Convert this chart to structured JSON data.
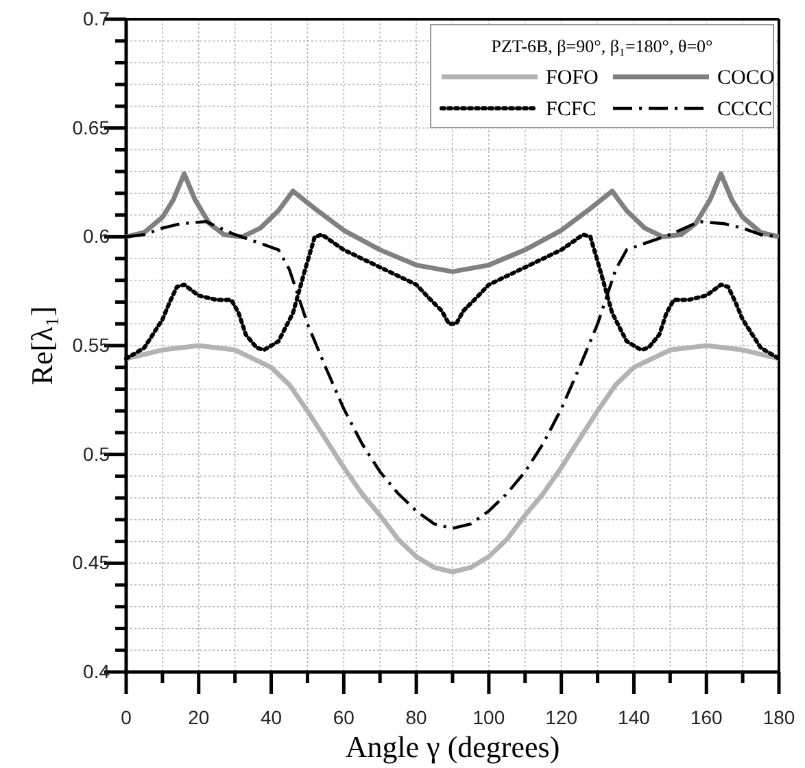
{
  "chart_data": {
    "type": "line",
    "xlabel": "Angle γ (degrees)",
    "ylabel": "Re[λ₁]",
    "legend_title": "PZT-6B, β=90°, β₁=180°, θ=0°",
    "xlim": [
      0,
      180
    ],
    "ylim": [
      0.4,
      0.7
    ],
    "xticks": [
      0,
      {
        "value": 10,
        "label": null
      },
      20,
      {
        "value": 30,
        "label": null
      },
      40,
      {
        "value": 50,
        "label": null
      },
      60,
      {
        "value": 70,
        "label": null
      },
      80,
      {
        "value": 90,
        "label": null
      },
      100,
      {
        "value": 110,
        "label": null
      },
      120,
      {
        "value": 130,
        "label": null
      },
      140,
      {
        "value": 150,
        "label": null
      },
      160,
      {
        "value": 170,
        "label": null
      },
      180
    ],
    "yticks": [
      0.4,
      {
        "value": 0.41,
        "label": null
      },
      {
        "value": 0.42,
        "label": null
      },
      {
        "value": 0.43,
        "label": null
      },
      {
        "value": 0.44,
        "label": null
      },
      0.45,
      {
        "value": 0.46,
        "label": null
      },
      {
        "value": 0.47,
        "label": null
      },
      {
        "value": 0.48,
        "label": null
      },
      {
        "value": 0.49,
        "label": null
      },
      0.5,
      {
        "value": 0.51,
        "label": null
      },
      {
        "value": 0.52,
        "label": null
      },
      {
        "value": 0.53,
        "label": null
      },
      {
        "value": 0.54,
        "label": null
      },
      0.55,
      {
        "value": 0.56,
        "label": null
      },
      {
        "value": 0.57,
        "label": null
      },
      {
        "value": 0.58,
        "label": null
      },
      {
        "value": 0.59,
        "label": null
      },
      0.6,
      {
        "value": 0.61,
        "label": null
      },
      {
        "value": 0.62,
        "label": null
      },
      {
        "value": 0.63,
        "label": null
      },
      {
        "value": 0.64,
        "label": null
      },
      0.65,
      {
        "value": 0.66,
        "label": null
      },
      {
        "value": 0.67,
        "label": null
      },
      {
        "value": 0.68,
        "label": null
      },
      {
        "value": 0.69,
        "label": null
      },
      0.7
    ],
    "grid": true,
    "legend": "top right",
    "marker": "none",
    "series": [
      {
        "name": "FOFO",
        "color": "#b3b3b3",
        "line_style": "solid",
        "x": [
          0,
          10,
          20,
          30,
          40,
          45,
          50,
          55,
          60,
          65,
          70,
          75,
          80,
          85,
          90,
          95,
          100,
          105,
          110,
          115,
          120,
          125,
          130,
          135,
          140,
          150,
          160,
          170,
          180
        ],
        "values": [
          0.544,
          0.548,
          0.55,
          0.548,
          0.54,
          0.532,
          0.52,
          0.507,
          0.494,
          0.482,
          0.472,
          0.461,
          0.453,
          0.448,
          0.446,
          0.448,
          0.453,
          0.461,
          0.472,
          0.482,
          0.494,
          0.507,
          0.52,
          0.532,
          0.54,
          0.548,
          0.55,
          0.548,
          0.544
        ]
      },
      {
        "name": "COCO",
        "color": "#808080",
        "line_style": "solid",
        "x": [
          0,
          5,
          10,
          13,
          16,
          19,
          23,
          27,
          32,
          37,
          42,
          46,
          52,
          60,
          70,
          80,
          90,
          100,
          110,
          120,
          128,
          134,
          138,
          143,
          148,
          153,
          157,
          161,
          164,
          167,
          170,
          175,
          180
        ],
        "values": [
          0.6,
          0.602,
          0.609,
          0.617,
          0.629,
          0.617,
          0.606,
          0.601,
          0.6,
          0.604,
          0.612,
          0.621,
          0.613,
          0.603,
          0.594,
          0.587,
          0.584,
          0.587,
          0.594,
          0.603,
          0.613,
          0.621,
          0.612,
          0.604,
          0.6,
          0.601,
          0.606,
          0.617,
          0.629,
          0.617,
          0.609,
          0.602,
          0.6
        ]
      },
      {
        "name": "FCFC",
        "color": "#000000",
        "line_style": "dotted",
        "x": [
          0,
          5,
          10,
          12,
          14,
          16,
          20,
          25,
          29,
          31,
          33,
          36,
          38,
          42,
          46,
          49,
          52,
          54,
          60,
          70,
          80,
          84,
          87,
          89,
          90,
          91,
          93,
          96,
          100,
          110,
          120,
          126,
          128,
          131,
          134,
          138,
          142,
          144,
          147,
          149,
          151,
          155,
          160,
          164,
          166,
          168,
          170,
          175,
          180
        ],
        "values": [
          0.544,
          0.549,
          0.562,
          0.57,
          0.577,
          0.578,
          0.573,
          0.571,
          0.571,
          0.565,
          0.555,
          0.549,
          0.548,
          0.552,
          0.565,
          0.583,
          0.6,
          0.601,
          0.594,
          0.586,
          0.578,
          0.571,
          0.566,
          0.56,
          0.56,
          0.56,
          0.566,
          0.571,
          0.578,
          0.586,
          0.594,
          0.601,
          0.6,
          0.583,
          0.565,
          0.552,
          0.548,
          0.549,
          0.555,
          0.565,
          0.571,
          0.571,
          0.573,
          0.578,
          0.577,
          0.57,
          0.562,
          0.549,
          0.544
        ]
      },
      {
        "name": "CCCC",
        "color": "#000000",
        "line_style": "dashdot",
        "x": [
          0,
          5,
          10,
          15,
          22,
          30,
          37,
          42,
          45,
          50,
          55,
          60,
          65,
          70,
          75,
          80,
          85,
          90,
          95,
          100,
          105,
          110,
          115,
          120,
          125,
          130,
          135,
          138,
          143,
          150,
          158,
          165,
          170,
          175,
          180
        ],
        "values": [
          0.6,
          0.601,
          0.604,
          0.606,
          0.607,
          0.601,
          0.597,
          0.594,
          0.585,
          0.56,
          0.54,
          0.521,
          0.505,
          0.492,
          0.482,
          0.474,
          0.468,
          0.466,
          0.468,
          0.474,
          0.482,
          0.492,
          0.505,
          0.521,
          0.54,
          0.56,
          0.585,
          0.594,
          0.597,
          0.601,
          0.607,
          0.606,
          0.604,
          0.601,
          0.6
        ]
      }
    ]
  }
}
